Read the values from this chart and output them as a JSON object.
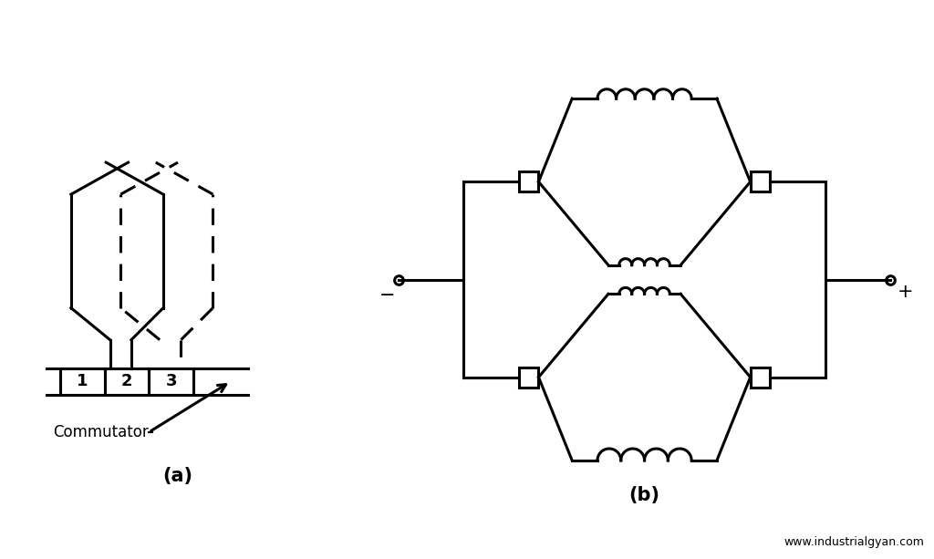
{
  "background_color": "#ffffff",
  "line_color": "#000000",
  "line_width": 2.2,
  "title_a": "(a)",
  "title_b": "(b)",
  "commutator_label": "Commutator",
  "minus_label": "−",
  "plus_label": "+",
  "website": "www.industrialgyan.com",
  "segment_labels": [
    "1",
    "2",
    "3"
  ]
}
